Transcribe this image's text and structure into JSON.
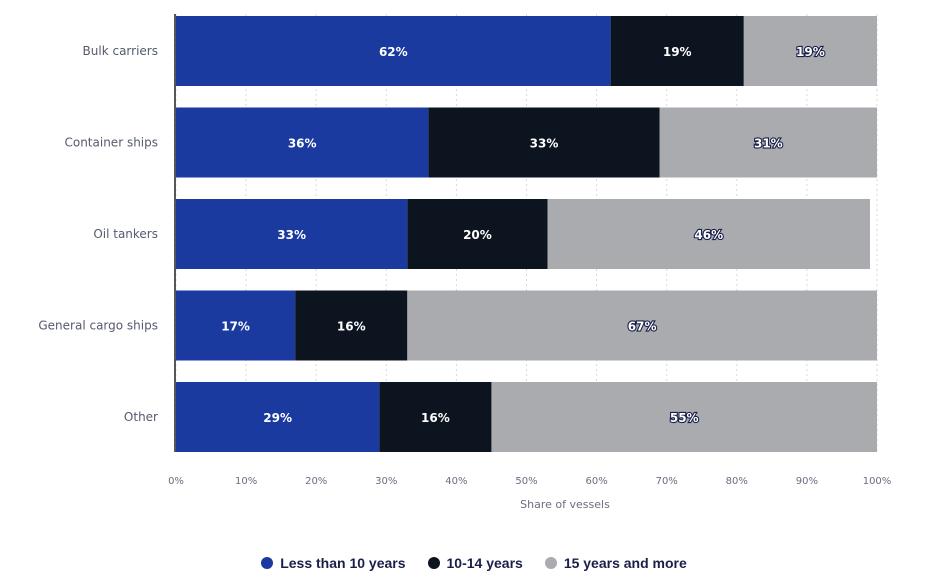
{
  "chart_data": {
    "type": "bar",
    "orientation": "horizontal",
    "stacked": true,
    "categories": [
      "Bulk carriers",
      "Container ships",
      "Oil tankers",
      "General cargo ships",
      "Other"
    ],
    "series": [
      {
        "name": "Less than 10 years",
        "color": "#1a3aa0",
        "values": [
          62,
          36,
          33,
          17,
          29
        ],
        "labels": [
          "62%",
          "36%",
          "33%",
          "17%",
          "29%"
        ]
      },
      {
        "name": "10-14 years",
        "color": "#0c1420",
        "values": [
          19,
          33,
          20,
          16,
          16
        ],
        "labels": [
          "19%",
          "33%",
          "20%",
          "16%",
          "16%"
        ]
      },
      {
        "name": "15 years and more",
        "color": "#a9abaf",
        "values": [
          19,
          31,
          46,
          67,
          55
        ],
        "labels": [
          "19%",
          "31%",
          "46%",
          "67%",
          "55%"
        ]
      }
    ],
    "xlabel": "Share of vessels",
    "xlim": [
      0,
      100
    ],
    "xticks": [
      "0%",
      "10%",
      "20%",
      "30%",
      "40%",
      "50%",
      "60%",
      "70%",
      "80%",
      "90%",
      "100%"
    ],
    "grid": "vertical dashed",
    "legend_position": "bottom"
  }
}
